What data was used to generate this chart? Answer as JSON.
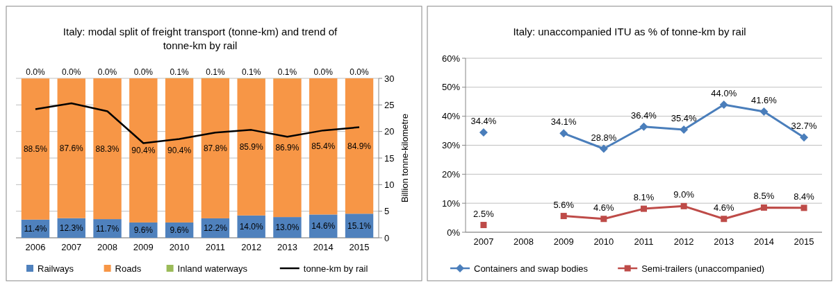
{
  "chart_data": [
    {
      "type": "bar",
      "title": "Italy: modal split of freight transport (tonne-km) and trend of tonne-km by rail",
      "y2label": "Billion tonne-kilometre",
      "categories": [
        "2006",
        "2007",
        "2008",
        "2009",
        "2010",
        "2011",
        "2012",
        "2013",
        "2014",
        "2015"
      ],
      "stacked": true,
      "ylim": [
        0,
        100
      ],
      "y2lim": [
        0,
        30
      ],
      "y2ticks": [
        0,
        5,
        10,
        15,
        20,
        25,
        30
      ],
      "grid": true,
      "legend": "bottom",
      "series": [
        {
          "name": "Railways",
          "color": "#4f81bd",
          "values": [
            11.4,
            12.3,
            11.7,
            9.6,
            9.6,
            12.2,
            14.0,
            13.0,
            14.6,
            15.1
          ],
          "value_labels": [
            "11.4%",
            "12.3%",
            "11.7%",
            "9.6%",
            "9.6%",
            "12.2%",
            "14.0%",
            "13.0%",
            "14.6%",
            "15.1%"
          ]
        },
        {
          "name": "Roads",
          "color": "#f79646",
          "values": [
            88.5,
            87.6,
            88.3,
            90.4,
            90.4,
            87.8,
            85.9,
            86.9,
            85.4,
            84.9
          ],
          "value_labels": [
            "88.5%",
            "87.6%",
            "88.3%",
            "90.4%",
            "90.4%",
            "87.8%",
            "85.9%",
            "86.9%",
            "85.4%",
            "84.9%"
          ]
        },
        {
          "name": "Inland waterways",
          "color": "#9bbb59",
          "values": [
            0.0,
            0.0,
            0.0,
            0.0,
            0.1,
            0.1,
            0.1,
            0.1,
            0.0,
            0.0
          ],
          "value_labels": [
            "0.0%",
            "0.0%",
            "0.0%",
            "0.0%",
            "0.1%",
            "0.1%",
            "0.1%",
            "0.1%",
            "0.0%",
            "0.0%"
          ]
        },
        {
          "name": "tonne-km by rail",
          "type": "line",
          "axis": "y2",
          "color": "#000000",
          "marker": "none",
          "values": [
            24.2,
            25.3,
            23.8,
            17.8,
            18.6,
            19.8,
            20.3,
            19.0,
            20.2,
            20.8
          ]
        }
      ]
    },
    {
      "type": "line",
      "title": "Italy: unaccompanied ITU as % of tonne-km by rail",
      "categories": [
        "2007",
        "2008",
        "2009",
        "2010",
        "2011",
        "2012",
        "2013",
        "2014",
        "2015"
      ],
      "ylim": [
        0,
        60
      ],
      "yticks": [
        {
          "value": 0,
          "label": "0%"
        },
        {
          "value": 10,
          "label": "10%"
        },
        {
          "value": 20,
          "label": "20%"
        },
        {
          "value": 30,
          "label": "30%"
        },
        {
          "value": 40,
          "label": "40%"
        },
        {
          "value": 50,
          "label": "50%"
        },
        {
          "value": 60,
          "label": "60%"
        }
      ],
      "grid": "y",
      "legend": "bottom",
      "series": [
        {
          "name": "Containers and swap bodies",
          "color": "#4a7ebb",
          "marker": "diamond",
          "values": [
            34.4,
            null,
            34.1,
            28.8,
            36.4,
            35.4,
            44.0,
            41.6,
            32.7
          ],
          "value_labels": [
            "34.4%",
            null,
            "34.1%",
            "28.8%",
            "36.4%",
            "35.4%",
            "44.0%",
            "41.6%",
            "32.7%"
          ]
        },
        {
          "name": "Semi-trailers (unaccompanied)",
          "color": "#be4b48",
          "marker": "square",
          "values": [
            2.5,
            null,
            5.6,
            4.6,
            8.1,
            9.0,
            4.6,
            8.5,
            8.4
          ],
          "value_labels": [
            "2.5%",
            null,
            "5.6%",
            "4.6%",
            "8.1%",
            "9.0%",
            "4.6%",
            "8.5%",
            "8.4%"
          ]
        }
      ]
    }
  ]
}
